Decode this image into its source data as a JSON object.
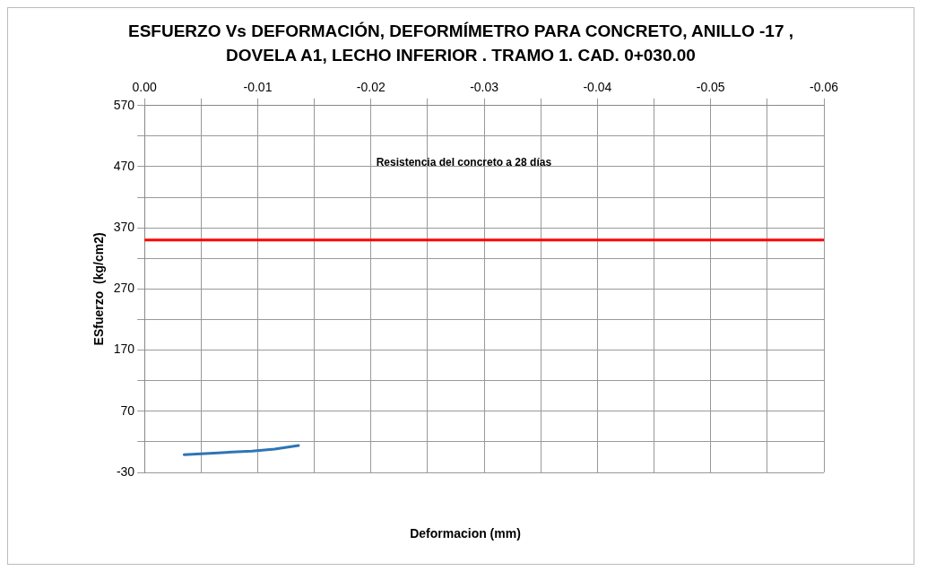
{
  "chart_data": {
    "type": "line",
    "title": "ESFUERZO  Vs  DEFORMACIÓN, DEFORMÍMETRO PARA CONCRETO, ANILLO -17 , DOVELA A1,  LECHO INFERIOR . TRAMO 1. CAD. 0+030.00",
    "xlabel": "Deformacion  (mm)",
    "ylabel": "ESfuerzo  (kg/cm2)",
    "series": [
      {
        "color": "#2e75b6",
        "x": [
          -0.0035,
          -0.0065,
          -0.0095,
          -0.0115,
          -0.0136
        ],
        "values": [
          -1,
          2,
          5,
          8,
          14
        ]
      }
    ],
    "xlim": [
      0,
      -0.06
    ],
    "xticks": [
      {
        "value": 0,
        "label": "0.00"
      },
      {
        "value": -0.005,
        "label": null
      },
      {
        "value": -0.01,
        "label": "-0.01"
      },
      {
        "value": -0.015,
        "label": null
      },
      {
        "value": -0.02,
        "label": "-0.02"
      },
      {
        "value": -0.025,
        "label": null
      },
      {
        "value": -0.03,
        "label": "-0.03"
      },
      {
        "value": -0.035,
        "label": null
      },
      {
        "value": -0.04,
        "label": "-0.04"
      },
      {
        "value": -0.045,
        "label": null
      },
      {
        "value": -0.05,
        "label": "-0.05"
      },
      {
        "value": -0.055,
        "label": null
      },
      {
        "value": -0.06,
        "label": "-0.06"
      }
    ],
    "ylim": [
      -30,
      570
    ],
    "yticks": [
      -30,
      {
        "value": 20,
        "label": null
      },
      70,
      {
        "value": 120,
        "label": null
      },
      170,
      {
        "value": 220,
        "label": null
      },
      270,
      {
        "value": 320,
        "label": null
      },
      370,
      {
        "value": 420,
        "label": null
      },
      470,
      {
        "value": 520,
        "label": null
      },
      570
    ],
    "ref_lines": [
      {
        "axis": "y",
        "value": 350,
        "color": "#ff0000"
      }
    ],
    "annotations": [
      "Resistencia del concreto a 28 días"
    ],
    "grid": true,
    "legend": false,
    "marker": "none",
    "line_style": "solid"
  }
}
